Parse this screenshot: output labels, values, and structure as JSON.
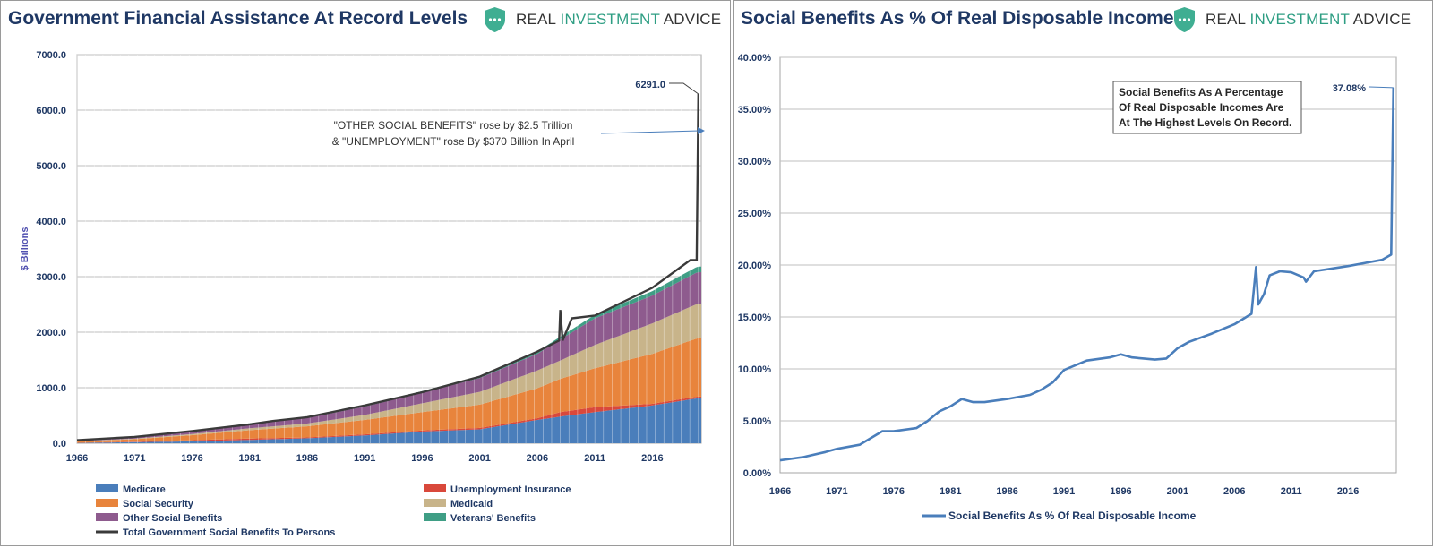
{
  "left": {
    "title": "Government Financial Assistance At Record Levels",
    "logo": {
      "word1": "REAL ",
      "word2": "INVESTMENT",
      "word3": " ADVICE"
    },
    "chart_data": {
      "type": "area",
      "title": "Government Financial Assistance At Record Levels",
      "ylabel": "$ Billions",
      "xlabel": "",
      "ylim": [
        0,
        7000
      ],
      "yticks": [
        "0.0",
        "1000.0",
        "2000.0",
        "3000.0",
        "4000.0",
        "5000.0",
        "6000.0",
        "7000.0"
      ],
      "xticks": [
        "1966",
        "1971",
        "1976",
        "1981",
        "1986",
        "1991",
        "1996",
        "2001",
        "2006",
        "2011",
        "2016"
      ],
      "x": [
        1966,
        1971,
        1976,
        1981,
        1986,
        1991,
        1996,
        2001,
        2006,
        2008,
        2011,
        2016,
        2019.9
      ],
      "stacked": true,
      "series": [
        {
          "name": "Medicare",
          "values": [
            5,
            20,
            35,
            60,
            90,
            140,
            210,
            250,
            420,
            480,
            560,
            680,
            810
          ]
        },
        {
          "name": "Unemployment Insurance",
          "values": [
            3,
            8,
            20,
            25,
            15,
            20,
            20,
            25,
            30,
            80,
            90,
            30,
            30
          ]
        },
        {
          "name": "Social Security",
          "values": [
            25,
            45,
            90,
            150,
            200,
            260,
            330,
            420,
            540,
            600,
            700,
            900,
            1050
          ]
        },
        {
          "name": "Medicaid",
          "values": [
            2,
            10,
            20,
            35,
            50,
            90,
            160,
            230,
            320,
            330,
            420,
            550,
            620
          ]
        },
        {
          "name": "Other Social Benefits",
          "values": [
            8,
            20,
            40,
            70,
            100,
            150,
            190,
            250,
            300,
            380,
            480,
            500,
            570
          ]
        },
        {
          "name": "Veterans' Benefits",
          "values": [
            10,
            12,
            15,
            20,
            22,
            25,
            28,
            35,
            40,
            50,
            60,
            80,
            100
          ]
        }
      ],
      "total_series": {
        "name": "Total Government Social Benefits To Persons",
        "x": [
          1966,
          1971,
          1976,
          1981,
          1983,
          1986,
          1991,
          1996,
          2001,
          2006,
          2007.9,
          2008.0,
          2008.2,
          2009,
          2011,
          2016,
          2019.3,
          2019.85,
          2020.0
        ],
        "values": [
          55,
          115,
          220,
          340,
          400,
          470,
          680,
          920,
          1200,
          1650,
          1850,
          2400,
          1850,
          2250,
          2300,
          2800,
          3300,
          3300,
          6291
        ]
      },
      "annotations": [
        {
          "text": "6291.0"
        },
        {
          "text": "\"OTHER SOCIAL BENEFITS\" rose by $2.5 Trillion"
        },
        {
          "text": "& \"UNEMPLOYMENT\" rose By $370 Billion In April"
        }
      ],
      "legend_placement": "bottom"
    },
    "colors": {
      "medicare": "#4a7ebb",
      "unemployment": "#d9483b",
      "social_security": "#e8843c",
      "medicaid": "#c8b48a",
      "other": "#8e5b8e",
      "veterans": "#3f9e85",
      "total": "#3a3a3a"
    }
  },
  "right": {
    "title": "Social Benefits As % Of Real Disposable Income",
    "logo": {
      "word1": "REAL ",
      "word2": "INVESTMENT",
      "word3": " ADVICE"
    },
    "chart_data": {
      "type": "line",
      "title": "Social Benefits As % Of Real Disposable Income",
      "xlabel": "",
      "ylabel": "",
      "ylim": [
        0,
        40
      ],
      "yticks": [
        "0.00%",
        "5.00%",
        "10.00%",
        "15.00%",
        "20.00%",
        "25.00%",
        "30.00%",
        "35.00%",
        "40.00%"
      ],
      "xticks": [
        "1966",
        "1971",
        "1976",
        "1981",
        "1986",
        "1991",
        "1996",
        "2001",
        "2006",
        "2011",
        "2016"
      ],
      "series": [
        {
          "name": "Social Benefits As % Of Real Disposable Income",
          "x": [
            1966,
            1968,
            1970,
            1971,
            1973,
            1975,
            1976,
            1978,
            1979,
            1980,
            1981,
            1982,
            1983,
            1984,
            1986,
            1988,
            1989,
            1990,
            1991,
            1993,
            1995,
            1996,
            1997,
            1999,
            2000,
            2001,
            2002,
            2004,
            2006,
            2007.5,
            2007.9,
            2008.1,
            2008.6,
            2009.1,
            2010,
            2011,
            2012.1,
            2012.3,
            2013,
            2016,
            2019,
            2019.8,
            2020.0
          ],
          "values": [
            1.2,
            1.5,
            2.0,
            2.3,
            2.7,
            4.0,
            4.0,
            4.3,
            5.0,
            5.9,
            6.4,
            7.1,
            6.8,
            6.8,
            7.1,
            7.5,
            8.0,
            8.7,
            9.9,
            10.8,
            11.1,
            11.4,
            11.1,
            10.9,
            11.0,
            12.0,
            12.6,
            13.4,
            14.3,
            15.3,
            19.8,
            16.2,
            17.2,
            19.0,
            19.4,
            19.3,
            18.8,
            18.4,
            19.4,
            19.9,
            20.5,
            21.0,
            37.08
          ]
        }
      ],
      "annotations": [
        {
          "text": "37.08%"
        },
        {
          "text": "Social Benefits As  A Percentage"
        },
        {
          "text": "Of Real Disposable Incomes Are"
        },
        {
          "text": "At The Highest Levels On Record."
        }
      ],
      "legend_placement": "bottom"
    },
    "colors": {
      "line": "#4a7ebb"
    }
  }
}
